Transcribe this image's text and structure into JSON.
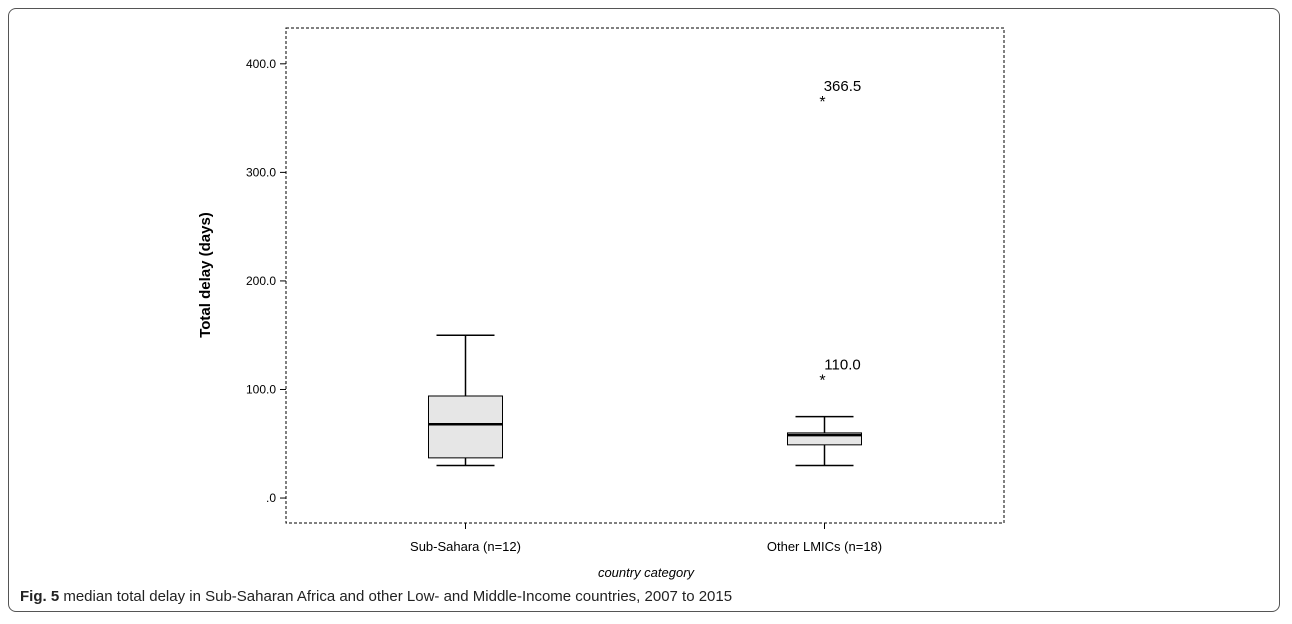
{
  "figure": {
    "label": "Fig. 5",
    "caption": "median total delay in Sub-Saharan Africa and other Low- and Middle-Income countries, 2007 to 2015"
  },
  "chart_data": {
    "type": "boxplot",
    "xlabel": "country category",
    "ylabel": "Total delay (days)",
    "ylim": [
      -23,
      433
    ],
    "yticks": [
      0,
      100,
      200,
      300,
      400
    ],
    "ytick_labels": [
      ".0",
      "100.0",
      "200.0",
      "300.0",
      "400.0"
    ],
    "categories": [
      "Sub-Sahara (n=12)",
      "Other LMICs (n=18)"
    ],
    "boxes": [
      {
        "category": "Sub-Sahara (n=12)",
        "whisker_low": 30,
        "q1": 37,
        "median": 68,
        "q3": 94,
        "whisker_high": 150,
        "outliers": []
      },
      {
        "category": "Other LMICs (n=18)",
        "whisker_low": 30,
        "q1": 49,
        "median": 58,
        "q3": 60,
        "whisker_high": 75,
        "outliers": [
          {
            "value": 366.5,
            "label": "366.5",
            "marker": "*"
          },
          {
            "value": 110.0,
            "label": "110.0",
            "marker": "*"
          }
        ]
      }
    ],
    "box_fill": "#e6e6e6",
    "grid": false
  }
}
